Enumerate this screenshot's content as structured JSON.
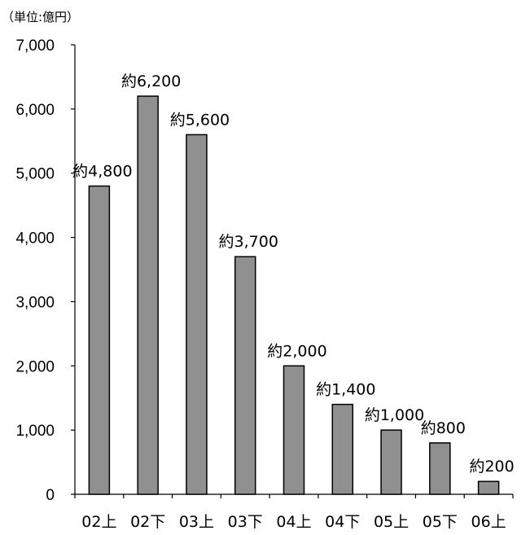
{
  "chart_data": {
    "type": "bar",
    "unit_label": "（単位:億円）",
    "categories": [
      "02上",
      "02下",
      "03上",
      "03下",
      "04上",
      "04下",
      "05上",
      "05下",
      "06上"
    ],
    "values": [
      4800,
      6200,
      5600,
      3700,
      2000,
      1400,
      1000,
      800,
      200
    ],
    "data_labels": [
      "約4,800",
      "約6,200",
      "約5,600",
      "約3,700",
      "約2,000",
      "約1,400",
      "約1,000",
      "約800",
      "約200"
    ],
    "y_ticks": [
      "0",
      "1,000",
      "2,000",
      "3,000",
      "4,000",
      "5,000",
      "6,000",
      "7,000"
    ],
    "ylim": [
      0,
      7000
    ],
    "grid": false,
    "bar_color": "#909090",
    "bar_stroke": "#000000"
  }
}
